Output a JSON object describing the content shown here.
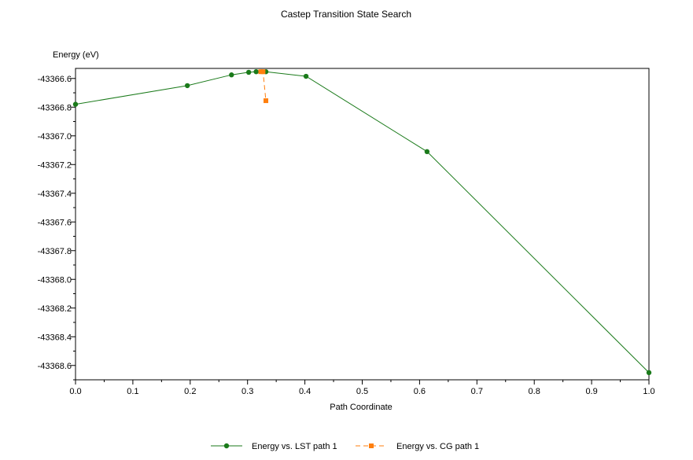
{
  "chart_data": {
    "type": "line",
    "title": "Castep Transition State Search",
    "xlabel": "Path Coordinate",
    "ylabel": "Energy (eV)",
    "xlim": [
      0.0,
      1.0
    ],
    "ylim": [
      -43368.7,
      -43366.53
    ],
    "x_ticks": [
      "0.0",
      "0.1",
      "0.2",
      "0.3",
      "0.4",
      "0.5",
      "0.6",
      "0.7",
      "0.8",
      "0.9",
      "1.0"
    ],
    "y_ticks": [
      "-43366.6",
      "-43366.8",
      "-43367.0",
      "-43367.2",
      "-43367.4",
      "-43367.6",
      "-43367.8",
      "-43368.0",
      "-43368.2",
      "-43368.4",
      "-43368.6"
    ],
    "grid": false,
    "legend_position": "bottom",
    "series": [
      {
        "name": "Energy vs. LST path 1",
        "color": "#1a7a1a",
        "marker": "circle",
        "style": "solid",
        "x": [
          0.0,
          0.195,
          0.272,
          0.302,
          0.315,
          0.332,
          0.402,
          0.613,
          1.0
        ],
        "y": [
          -43366.78,
          -43366.65,
          -43366.575,
          -43366.557,
          -43366.553,
          -43366.553,
          -43366.585,
          -43367.11,
          -43368.65
        ]
      },
      {
        "name": "Energy vs. CG path 1",
        "color": "#ff7f0e",
        "marker": "square",
        "style": "dashed",
        "x": [
          0.323,
          0.327,
          0.332
        ],
        "y": [
          -43366.553,
          -43366.553,
          -43366.755
        ]
      }
    ]
  }
}
